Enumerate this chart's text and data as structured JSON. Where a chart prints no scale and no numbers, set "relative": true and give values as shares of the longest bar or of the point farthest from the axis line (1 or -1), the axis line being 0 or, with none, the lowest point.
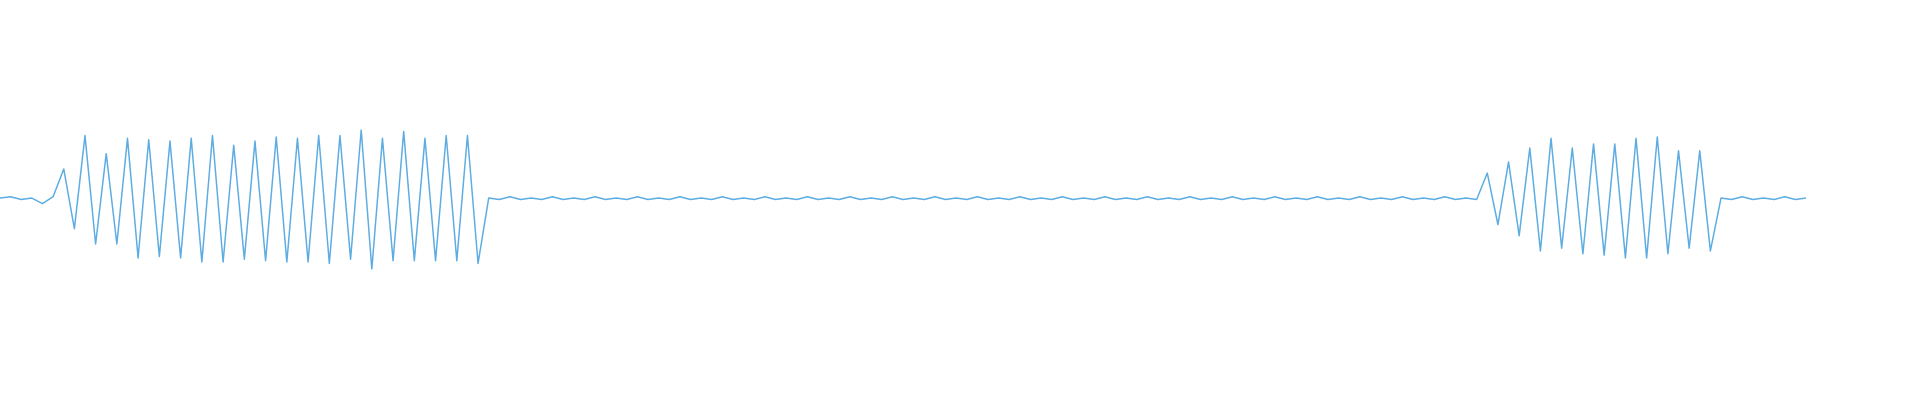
{
  "chart_data": {
    "type": "line",
    "relative": true,
    "tick_labels": false,
    "marker": "none",
    "categories": [
      null,
      null,
      null,
      null,
      null,
      null,
      null,
      null,
      null,
      null,
      null,
      null,
      null,
      null,
      null,
      null,
      null,
      null,
      null,
      null,
      null,
      null,
      null,
      null,
      null,
      null,
      null,
      null,
      null,
      null,
      null,
      null,
      null,
      null,
      null,
      null,
      null,
      null,
      null,
      null,
      null,
      null,
      null,
      null,
      null,
      null,
      null,
      null,
      null,
      null,
      null,
      null,
      null,
      null,
      null,
      null,
      null,
      null,
      null,
      null,
      null,
      null,
      null,
      null,
      null,
      null,
      null,
      null,
      null,
      null,
      null,
      null,
      null,
      null,
      null,
      null,
      null,
      null,
      null,
      null,
      null,
      null,
      null,
      null,
      null,
      null,
      null,
      null,
      null,
      null,
      null,
      null,
      null,
      null,
      null,
      null,
      null,
      null,
      null,
      null,
      null,
      null,
      null,
      null,
      null,
      null,
      null,
      null,
      null,
      null,
      null,
      null,
      null,
      null,
      null,
      null,
      null,
      null,
      null,
      null,
      null,
      null,
      null,
      null,
      null,
      null,
      null,
      null,
      null,
      null,
      null,
      null,
      null,
      null,
      null,
      null,
      null,
      null,
      null,
      null,
      null,
      null,
      null,
      null,
      null,
      null,
      null,
      null,
      null,
      null,
      null,
      null,
      null,
      null,
      null,
      null,
      null,
      null,
      null,
      null,
      null,
      null,
      null,
      null,
      null,
      null,
      null,
      null,
      null,
      null,
      null
    ],
    "series": [
      {
        "color": "#5dade2",
        "values": [
          0.51,
          0.52,
          0.5,
          0.51,
          0.47,
          0.52,
          0.72,
          0.29,
          0.96,
          0.18,
          0.83,
          0.18,
          0.94,
          0.08,
          0.93,
          0.09,
          0.92,
          0.08,
          0.94,
          0.05,
          0.96,
          0.05,
          0.89,
          0.07,
          0.92,
          0.06,
          0.95,
          0.05,
          0.94,
          0.05,
          0.96,
          0.04,
          0.96,
          0.07,
          1,
          0,
          0.94,
          0.06,
          0.99,
          0.06,
          0.94,
          0.06,
          0.96,
          0.06,
          0.96,
          0.04,
          0.51,
          0.5,
          0.52,
          0.5,
          0.51,
          0.5,
          0.52,
          0.5,
          0.51,
          0.5,
          0.52,
          0.5,
          0.51,
          0.5,
          0.52,
          0.5,
          0.51,
          0.5,
          0.52,
          0.5,
          0.51,
          0.5,
          0.52,
          0.5,
          0.51,
          0.5,
          0.52,
          0.5,
          0.51,
          0.5,
          0.52,
          0.5,
          0.51,
          0.5,
          0.52,
          0.5,
          0.51,
          0.5,
          0.52,
          0.5,
          0.51,
          0.5,
          0.52,
          0.5,
          0.51,
          0.5,
          0.52,
          0.5,
          0.51,
          0.5,
          0.52,
          0.5,
          0.51,
          0.5,
          0.52,
          0.5,
          0.51,
          0.5,
          0.52,
          0.5,
          0.51,
          0.5,
          0.52,
          0.5,
          0.51,
          0.5,
          0.52,
          0.5,
          0.51,
          0.5,
          0.52,
          0.5,
          0.51,
          0.5,
          0.52,
          0.5,
          0.51,
          0.5,
          0.52,
          0.5,
          0.51,
          0.5,
          0.52,
          0.5,
          0.51,
          0.5,
          0.52,
          0.5,
          0.51,
          0.5,
          0.52,
          0.5,
          0.51,
          0.5,
          0.69,
          0.32,
          0.77,
          0.24,
          0.87,
          0.13,
          0.94,
          0.15,
          0.87,
          0.11,
          0.9,
          0.1,
          0.9,
          0.08,
          0.94,
          0.08,
          0.95,
          0.11,
          0.85,
          0.15,
          0.85,
          0.13,
          0.51,
          0.5,
          0.52,
          0.5,
          0.51,
          0.5,
          0.52,
          0.5,
          0.51
        ]
      }
    ]
  }
}
